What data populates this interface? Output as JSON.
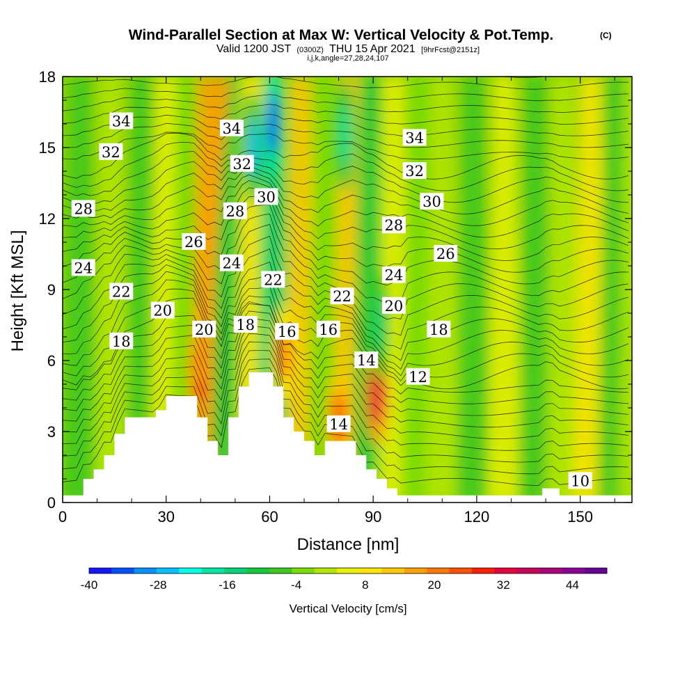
{
  "title": {
    "main": "Wind-Parallel Section at Max W: Vertical Velocity & Pot.Temp.",
    "copyright": "(C)",
    "valid_prefix": "Valid 1200 JST",
    "valid_utc": "(0300Z)",
    "valid_date": "THU 15 Apr 2021",
    "fcst": "[9hrFcst@2151z]",
    "ijk": "i,j,k,angle=27,28,24,107"
  },
  "chart_data": {
    "type": "heatmap",
    "xlabel": "Distance [nm]",
    "ylabel": "Height [Kft MSL]",
    "xlim": [
      0,
      165
    ],
    "ylim": [
      0,
      18
    ],
    "x_ticks": [
      "0",
      "30",
      "60",
      "90",
      "120",
      "150"
    ],
    "y_ticks": [
      "0",
      "3",
      "6",
      "9",
      "12",
      "15",
      "18"
    ],
    "x_tick_values": [
      0,
      30,
      60,
      90,
      120,
      150
    ],
    "y_tick_values": [
      0,
      3,
      6,
      9,
      12,
      15,
      18
    ],
    "colorbar": {
      "label": "Vertical Velocity [cm/s]",
      "tick_labels": [
        "-40",
        "-28",
        "-16",
        "-4",
        "8",
        "20",
        "32",
        "44"
      ],
      "tick_values": [
        -40,
        -28,
        -16,
        -4,
        8,
        20,
        32,
        44
      ],
      "range": [
        -40,
        50
      ],
      "colors": [
        "#1414ff",
        "#0050ff",
        "#0090ff",
        "#00c0ff",
        "#00ffe6",
        "#00e6a0",
        "#00d278",
        "#14c83c",
        "#3cc81e",
        "#78dc00",
        "#b4e600",
        "#e6f000",
        "#ffe600",
        "#ffc800",
        "#ffa000",
        "#ff7800",
        "#ff5000",
        "#ff1e00",
        "#e6003c",
        "#c8005a",
        "#aa0078",
        "#8c0096",
        "#640096"
      ]
    },
    "updraft_cores": [
      {
        "x": 40,
        "z": 5.5,
        "w": 30
      },
      {
        "x": 80,
        "z": 3.5,
        "w": 26
      },
      {
        "x": 91,
        "z": 4.5,
        "w": 32
      },
      {
        "x": 64,
        "z": 6.3,
        "w": 20
      }
    ],
    "downdraft_cores": [
      {
        "x": 61,
        "z": 16,
        "w": -40
      },
      {
        "x": 55,
        "z": 15,
        "w": -25
      },
      {
        "x": 82,
        "z": 15.5,
        "w": -20
      },
      {
        "x": 92,
        "z": 7.5,
        "w": -16
      }
    ],
    "terrain_kft": [
      [
        0,
        0.3
      ],
      [
        6,
        0.3
      ],
      [
        6,
        1
      ],
      [
        9,
        1
      ],
      [
        9,
        1.4
      ],
      [
        12,
        1.4
      ],
      [
        12,
        2
      ],
      [
        15,
        2
      ],
      [
        15,
        2.9
      ],
      [
        18,
        2.9
      ],
      [
        18,
        3.6
      ],
      [
        27,
        3.6
      ],
      [
        27,
        3.9
      ],
      [
        30,
        3.9
      ],
      [
        30,
        4.5
      ],
      [
        39,
        4.5
      ],
      [
        39,
        3.6
      ],
      [
        42,
        3.6
      ],
      [
        42,
        2.6
      ],
      [
        45,
        2.6
      ],
      [
        45,
        2
      ],
      [
        48,
        2
      ],
      [
        48,
        3.6
      ],
      [
        51,
        3.6
      ],
      [
        51,
        4.9
      ],
      [
        54,
        4.9
      ],
      [
        54,
        5.5
      ],
      [
        61,
        5.5
      ],
      [
        61,
        4.9
      ],
      [
        64,
        4.9
      ],
      [
        64,
        3.6
      ],
      [
        67,
        3.6
      ],
      [
        67,
        3
      ],
      [
        70,
        3
      ],
      [
        70,
        2.6
      ],
      [
        73,
        2.6
      ],
      [
        73,
        2
      ],
      [
        76,
        2
      ],
      [
        76,
        2.6
      ],
      [
        85,
        2.6
      ],
      [
        85,
        2
      ],
      [
        88,
        2
      ],
      [
        88,
        1.4
      ],
      [
        91,
        1.4
      ],
      [
        91,
        1
      ],
      [
        94,
        1
      ],
      [
        94,
        0.6
      ],
      [
        97,
        0.6
      ],
      [
        97,
        0.3
      ],
      [
        139,
        0.3
      ],
      [
        139,
        0.6
      ],
      [
        144,
        0.6
      ],
      [
        144,
        0.3
      ],
      [
        165,
        0.3
      ]
    ],
    "theta_labels": [
      {
        "text": "34",
        "x": 17,
        "z": 16.1
      },
      {
        "text": "34",
        "x": 49,
        "z": 15.8
      },
      {
        "text": "34",
        "x": 102,
        "z": 15.4
      },
      {
        "text": "32",
        "x": 14,
        "z": 14.8
      },
      {
        "text": "32",
        "x": 52,
        "z": 14.3
      },
      {
        "text": "32",
        "x": 102,
        "z": 14
      },
      {
        "text": "28",
        "x": 6,
        "z": 12.4
      },
      {
        "text": "28",
        "x": 50,
        "z": 12.3
      },
      {
        "text": "30",
        "x": 59,
        "z": 12.9
      },
      {
        "text": "30",
        "x": 107,
        "z": 12.7
      },
      {
        "text": "28",
        "x": 96,
        "z": 11.7
      },
      {
        "text": "26",
        "x": 38,
        "z": 11
      },
      {
        "text": "26",
        "x": 111,
        "z": 10.5
      },
      {
        "text": "24",
        "x": 6,
        "z": 9.9
      },
      {
        "text": "24",
        "x": 49,
        "z": 10.1
      },
      {
        "text": "24",
        "x": 96,
        "z": 9.6
      },
      {
        "text": "22",
        "x": 17,
        "z": 8.9
      },
      {
        "text": "22",
        "x": 61,
        "z": 9.4
      },
      {
        "text": "22",
        "x": 81,
        "z": 8.7
      },
      {
        "text": "20",
        "x": 29,
        "z": 8.1
      },
      {
        "text": "20",
        "x": 41,
        "z": 7.3
      },
      {
        "text": "20",
        "x": 96,
        "z": 8.3
      },
      {
        "text": "18",
        "x": 17,
        "z": 6.8
      },
      {
        "text": "18",
        "x": 53,
        "z": 7.5
      },
      {
        "text": "18",
        "x": 109,
        "z": 7.3
      },
      {
        "text": "16",
        "x": 65,
        "z": 7.2
      },
      {
        "text": "16",
        "x": 77,
        "z": 7.3
      },
      {
        "text": "14",
        "x": 88,
        "z": 6
      },
      {
        "text": "12",
        "x": 103,
        "z": 5.3
      },
      {
        "text": "14",
        "x": 80,
        "z": 3.3
      },
      {
        "text": "10",
        "x": 150,
        "z": 0.9
      }
    ]
  }
}
